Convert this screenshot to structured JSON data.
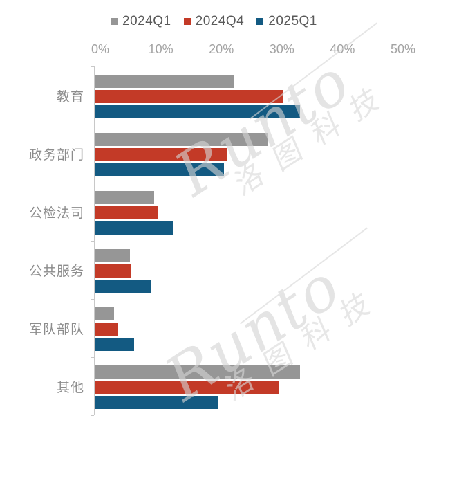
{
  "chart_data": {
    "type": "bar",
    "orientation": "horizontal",
    "title": "",
    "xlabel": "",
    "ylabel": "",
    "xlim": [
      0,
      50
    ],
    "grid": false,
    "legend_position": "top",
    "x_ticks": [
      "0%",
      "10%",
      "20%",
      "30%",
      "40%",
      "50%"
    ],
    "categories": [
      "教育",
      "政务部门",
      "公检法司",
      "公共服务",
      "军队部队",
      "其他"
    ],
    "series": [
      {
        "name": "2024Q1",
        "color": "#969696",
        "values": [
          23.0,
          28.5,
          9.8,
          5.8,
          3.2,
          33.8
        ]
      },
      {
        "name": "2024Q4",
        "color": "#C33A27",
        "values": [
          31.0,
          21.7,
          10.4,
          6.0,
          3.8,
          30.3
        ]
      },
      {
        "name": "2025Q1",
        "color": "#135A82",
        "values": [
          33.8,
          21.3,
          12.9,
          9.3,
          6.5,
          20.3
        ]
      }
    ]
  },
  "watermark": {
    "latin": "Runto",
    "cn": "洛图科技"
  },
  "colors": {
    "axis_line": "#C8C8C8",
    "tick_label": "#A3A3A3",
    "category_label": "#8C8C8C",
    "legend_label": "#595959",
    "watermark": "#D6D6D6"
  }
}
